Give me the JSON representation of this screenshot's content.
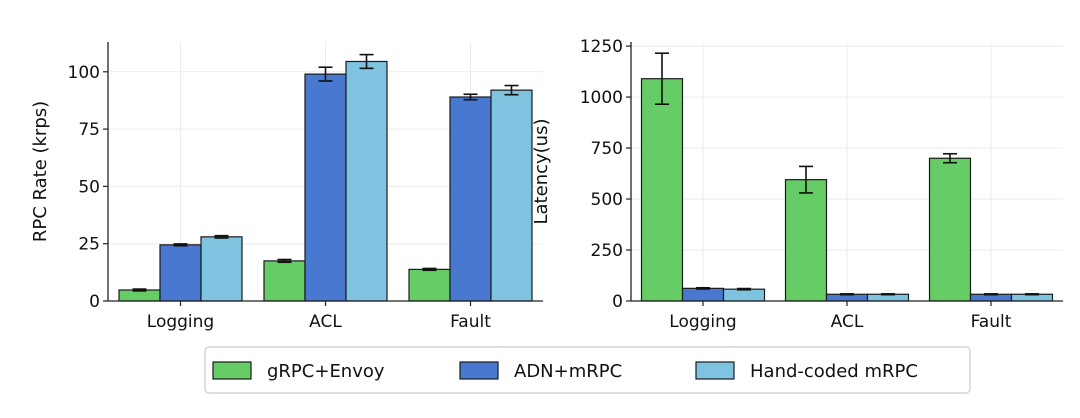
{
  "chart_data": [
    {
      "type": "bar",
      "title": "",
      "xlabel": "",
      "ylabel": "RPC Rate (krps)",
      "categories": [
        "Logging",
        "ACL",
        "Fault"
      ],
      "ylim": [
        0,
        113
      ],
      "yticks": [
        0,
        25,
        50,
        75,
        100
      ],
      "grid": true,
      "series": [
        {
          "name": "gRPC+Envoy",
          "values": [
            4.8,
            17.5,
            13.8
          ],
          "errors": [
            0.4,
            0.6,
            0.4
          ]
        },
        {
          "name": "ADN+mRPC",
          "values": [
            24.5,
            99,
            89
          ],
          "errors": [
            0.4,
            3,
            1.2
          ]
        },
        {
          "name": "Hand-coded mRPC",
          "values": [
            28,
            104.5,
            92
          ],
          "errors": [
            0.5,
            3,
            2
          ]
        }
      ]
    },
    {
      "type": "bar",
      "title": "",
      "xlabel": "",
      "ylabel": "Latency(us)",
      "categories": [
        "Logging",
        "ACL",
        "Fault"
      ],
      "ylim": [
        0,
        1270
      ],
      "yticks": [
        0,
        250,
        500,
        750,
        1000,
        1250
      ],
      "grid": true,
      "series": [
        {
          "name": "gRPC+Envoy",
          "values": [
            1090,
            595,
            700
          ],
          "errors": [
            125,
            65,
            22
          ]
        },
        {
          "name": "ADN+mRPC",
          "values": [
            62,
            33,
            33
          ],
          "errors": [
            3,
            2,
            2
          ]
        },
        {
          "name": "Hand-coded mRPC",
          "values": [
            58,
            33,
            33
          ],
          "errors": [
            3,
            2,
            2
          ]
        }
      ]
    }
  ],
  "legend": {
    "position": "bottom-center",
    "items": [
      {
        "label": "gRPC+Envoy",
        "color": "#66cc66"
      },
      {
        "label": "ADN+mRPC",
        "color": "#4878cf"
      },
      {
        "label": "Hand-coded mRPC",
        "color": "#7ec4e0"
      }
    ]
  },
  "colors": {
    "series": [
      "#66cc66",
      "#4878cf",
      "#7ec4e0"
    ],
    "grid": "#ebebeb",
    "axis": "#222222"
  }
}
